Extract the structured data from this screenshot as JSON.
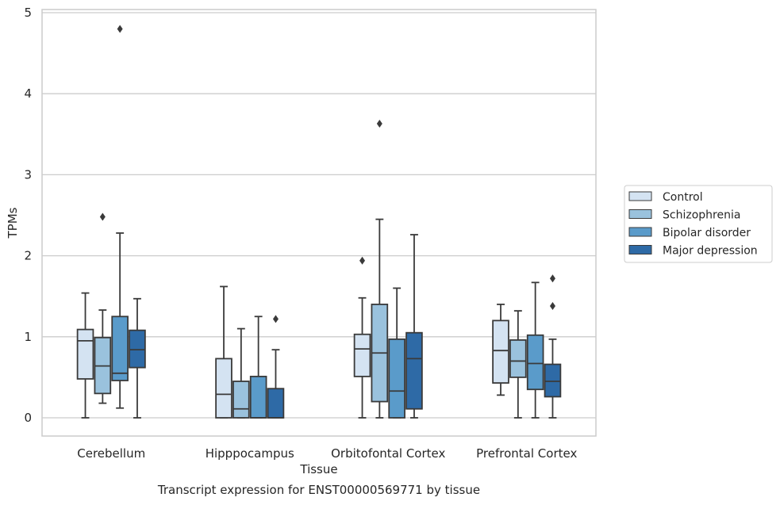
{
  "chart_data": {
    "type": "box",
    "caption": "Transcript expression for ENST00000569771 by tissue",
    "xlabel": "Tissue",
    "ylabel": "TPMs",
    "ylim": [
      -0.22,
      5.05
    ],
    "yticks": [
      0,
      1,
      2,
      3,
      4,
      5
    ],
    "grid": "horizontal",
    "legend_position": "right",
    "categories": [
      "Cerebellum",
      "Hipppocampus",
      "Orbitofontal Cortex",
      "Prefrontal Cortex"
    ],
    "series": [
      {
        "name": "Control",
        "color": "#d4e3f2",
        "boxes": [
          {
            "min": 0.0,
            "q1": 0.48,
            "median": 0.95,
            "q3": 1.09,
            "max": 1.54,
            "outliers": []
          },
          {
            "min": 0.0,
            "q1": 0.0,
            "median": 0.29,
            "q3": 0.73,
            "max": 1.62,
            "outliers": []
          },
          {
            "min": 0.0,
            "q1": 0.51,
            "median": 0.85,
            "q3": 1.03,
            "max": 1.48,
            "outliers": [
              1.94
            ]
          },
          {
            "min": 0.28,
            "q1": 0.43,
            "median": 0.83,
            "q3": 1.2,
            "max": 1.4,
            "outliers": []
          }
        ]
      },
      {
        "name": "Schizophrenia",
        "color": "#9ac2dd",
        "boxes": [
          {
            "min": 0.18,
            "q1": 0.3,
            "median": 0.64,
            "q3": 0.99,
            "max": 1.33,
            "outliers": [
              2.48
            ]
          },
          {
            "min": 0.0,
            "q1": 0.0,
            "median": 0.11,
            "q3": 0.45,
            "max": 1.1,
            "outliers": []
          },
          {
            "min": 0.0,
            "q1": 0.2,
            "median": 0.8,
            "q3": 1.4,
            "max": 2.45,
            "outliers": [
              3.63
            ]
          },
          {
            "min": 0.0,
            "q1": 0.5,
            "median": 0.7,
            "q3": 0.96,
            "max": 1.32,
            "outliers": []
          }
        ]
      },
      {
        "name": "Bipolar disorder",
        "color": "#5a9bca",
        "boxes": [
          {
            "min": 0.12,
            "q1": 0.46,
            "median": 0.55,
            "q3": 1.25,
            "max": 2.28,
            "outliers": [
              4.8
            ]
          },
          {
            "min": 0.0,
            "q1": 0.0,
            "median": 0.0,
            "q3": 0.51,
            "max": 1.25,
            "outliers": []
          },
          {
            "min": 0.0,
            "q1": 0.0,
            "median": 0.33,
            "q3": 0.97,
            "max": 1.6,
            "outliers": []
          },
          {
            "min": 0.0,
            "q1": 0.35,
            "median": 0.67,
            "q3": 1.02,
            "max": 1.67,
            "outliers": []
          }
        ]
      },
      {
        "name": "Major depression",
        "color": "#2e6aa6",
        "boxes": [
          {
            "min": 0.0,
            "q1": 0.62,
            "median": 0.84,
            "q3": 1.08,
            "max": 1.47,
            "outliers": []
          },
          {
            "min": 0.0,
            "q1": 0.0,
            "median": 0.0,
            "q3": 0.36,
            "max": 0.84,
            "outliers": [
              1.22
            ]
          },
          {
            "min": 0.0,
            "q1": 0.11,
            "median": 0.73,
            "q3": 1.05,
            "max": 2.26,
            "outliers": []
          },
          {
            "min": 0.0,
            "q1": 0.26,
            "median": 0.45,
            "q3": 0.66,
            "max": 0.97,
            "outliers": [
              1.38,
              1.72
            ]
          }
        ]
      }
    ]
  }
}
